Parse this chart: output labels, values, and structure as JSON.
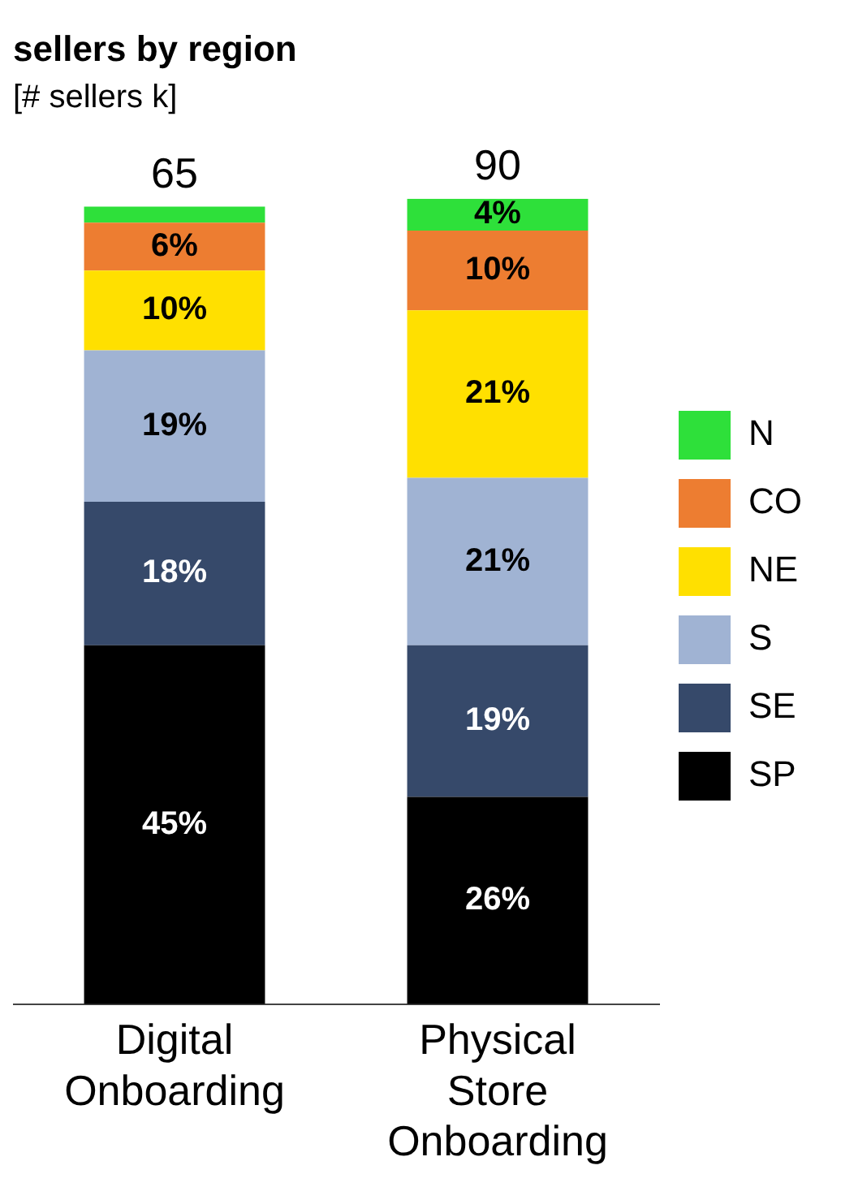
{
  "chart_data": {
    "type": "bar",
    "title": "sellers by region",
    "subtitle": "[# sellers k]",
    "stacked": true,
    "categories": [
      "Digital Onboarding",
      "Physical Store Onboarding"
    ],
    "series": [
      {
        "name": "SP",
        "color": "#000000",
        "values": [
          45,
          26
        ],
        "value_labels": [
          "45%",
          "26%"
        ]
      },
      {
        "name": "SE",
        "color": "#36496a",
        "values": [
          18,
          19
        ],
        "value_labels": [
          "18%",
          "19%"
        ]
      },
      {
        "name": "S",
        "color": "#a0b3d3",
        "values": [
          19,
          21
        ],
        "value_labels": [
          "19%",
          "21%"
        ]
      },
      {
        "name": "NE",
        "color": "#ffe000",
        "values": [
          10,
          21
        ],
        "value_labels": [
          "10%",
          "21%"
        ]
      },
      {
        "name": "CO",
        "color": "#ed7d31",
        "values": [
          6,
          10
        ],
        "value_labels": [
          "6%",
          "10%"
        ]
      },
      {
        "name": "N",
        "color": "#2ee03a",
        "values": [
          2,
          4
        ],
        "value_labels": [
          null,
          "4%"
        ]
      }
    ],
    "annotations": [
      "65",
      "90"
    ],
    "legend": "right",
    "grid": false
  }
}
